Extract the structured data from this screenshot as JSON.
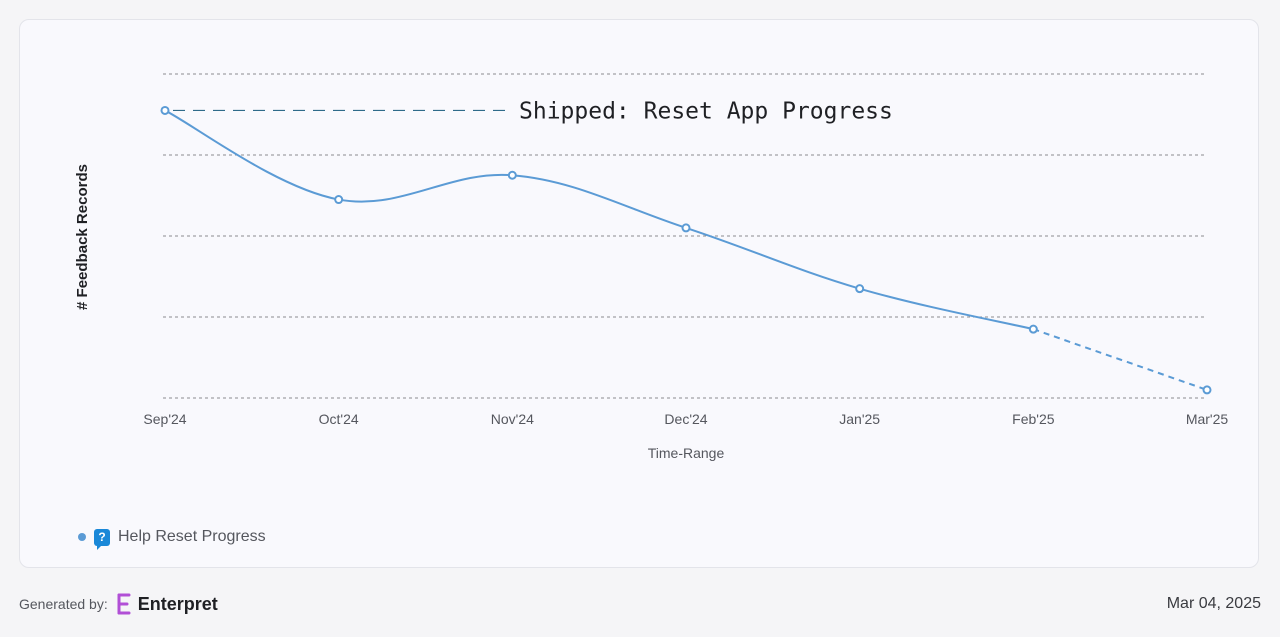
{
  "chart_data": {
    "type": "line",
    "categories": [
      "Sep'24",
      "Oct'24",
      "Nov'24",
      "Dec'24",
      "Jan'25",
      "Feb'25",
      "Mar'25"
    ],
    "series": [
      {
        "name": "Help Reset Progress",
        "values": [
          71,
          49,
          55,
          42,
          27,
          17,
          2
        ],
        "color": "#5b9bd5",
        "projected_from_index": 5
      }
    ],
    "xlabel": "Time-Range",
    "ylabel": "# Feedback Records",
    "ylim": [
      0,
      80
    ],
    "grid": true,
    "legend_position": "bottom-left",
    "annotation": {
      "text": "Shipped: Reset App Progress",
      "category": "Sep'24",
      "color": "#2f6b8a"
    }
  },
  "legend": {
    "icon": "question-speech-icon",
    "icon_glyph": "?"
  },
  "footer": {
    "generated_by": "Generated by:",
    "brand": "Enterpret",
    "brand_icon": "enterpret-logo-icon",
    "brand_color": "#b14fd6",
    "date": "Mar 04, 2025"
  }
}
